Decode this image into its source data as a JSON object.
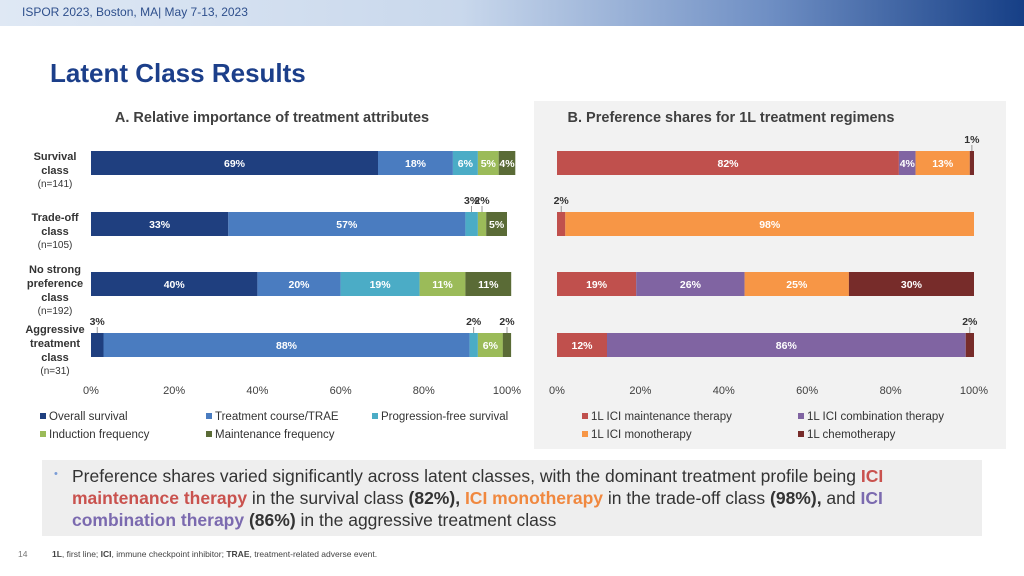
{
  "header": {
    "conference": "ISPOR 2023, Boston, MA| May 7-13, 2023"
  },
  "title": "Latent Class Results",
  "chart_data": [
    {
      "type": "bar",
      "orientation": "horizontal-stacked-percent",
      "title": "A. Relative importance of treatment attributes",
      "categories": [
        {
          "label": "Survival class",
          "n": "(n=141)"
        },
        {
          "label": "Trade-off class",
          "n": "(n=105)"
        },
        {
          "label": "No strong preference class",
          "n": "(n=192)"
        },
        {
          "label": "Aggressive treatment class",
          "n": "(n=31)"
        }
      ],
      "series": [
        {
          "name": "Overall survival",
          "color": "#1f3f7f",
          "values": [
            69,
            33,
            40,
            3
          ]
        },
        {
          "name": "Treatment course/TRAE",
          "color": "#4a7cc0",
          "values": [
            18,
            57,
            20,
            88
          ]
        },
        {
          "name": "Progression-free survival",
          "color": "#4bacc6",
          "values": [
            6,
            3,
            19,
            2
          ]
        },
        {
          "name": "Induction frequency",
          "color": "#9bbb59",
          "values": [
            5,
            2,
            11,
            6
          ]
        },
        {
          "name": "Maintenance frequency",
          "color": "#5a6b36",
          "values": [
            4,
            5,
            11,
            2
          ]
        }
      ],
      "xlim": [
        0,
        100
      ],
      "xticks": [
        "0%",
        "20%",
        "40%",
        "60%",
        "80%",
        "100%"
      ],
      "legend": "bottom"
    },
    {
      "type": "bar",
      "orientation": "horizontal-stacked-percent",
      "title": "B. Preference shares for 1L treatment regimens",
      "series": [
        {
          "name": "1L ICI maintenance therapy",
          "color": "#c0504d",
          "values": [
            82,
            2,
            19,
            12
          ]
        },
        {
          "name": "1L ICI combination therapy",
          "color": "#8064a2",
          "values": [
            4,
            0,
            26,
            86
          ]
        },
        {
          "name": "1L ICI monotherapy",
          "color": "#f79646",
          "values": [
            13,
            98,
            25,
            0
          ]
        },
        {
          "name": "1L chemotherapy",
          "color": "#772c2a",
          "values": [
            1,
            0,
            30,
            2
          ]
        }
      ],
      "xlim": [
        0,
        100
      ],
      "xticks": [
        "0%",
        "20%",
        "40%",
        "60%",
        "80%",
        "100%"
      ],
      "legend": "bottom"
    }
  ],
  "callout": {
    "p1": "Preference shares varied significantly across latent classes, with the dominant treatment profile being ",
    "h1": "ICI maintenance therapy",
    "p2": " in the survival class ",
    "b1": "(82%),",
    "p3": " ",
    "h2": "ICI monotherapy",
    "p4": " in the trade-off class ",
    "b2": "(98%),",
    "p5": " and ",
    "h3": "ICI combination therapy",
    "p6": " ",
    "b3": "(86%)",
    "p7": " in the aggressive treatment class"
  },
  "footnote": {
    "k1": "1L",
    "t1": ", first line; ",
    "k2": "ICI",
    "t2": ", immune checkpoint inhibitor; ",
    "k3": "TRAE",
    "t3": ", treatment-related adverse event."
  },
  "page_number": "14"
}
